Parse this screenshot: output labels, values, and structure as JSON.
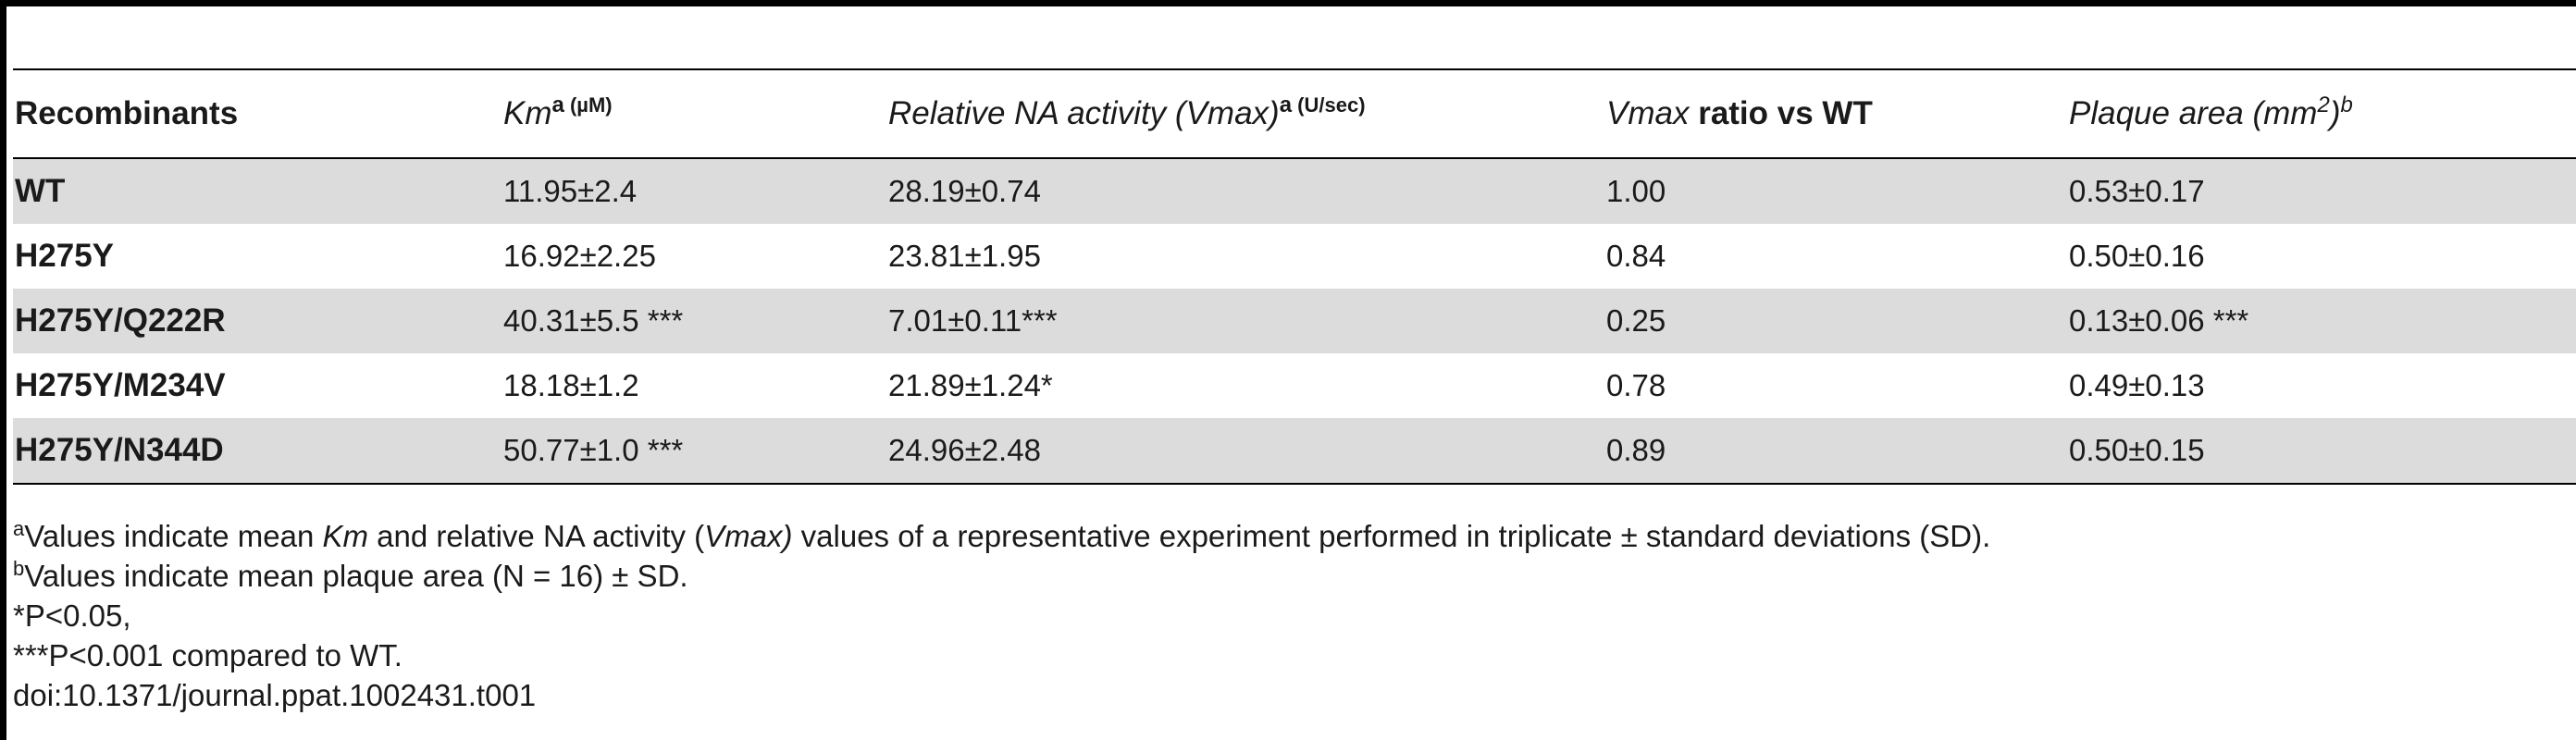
{
  "table": {
    "headers": [
      {
        "main": "Recombinants",
        "sup": "",
        "unit": ""
      },
      {
        "main": "Km",
        "sup": "a",
        "unit": " (µM)"
      },
      {
        "main": "Relative NA activity (Vmax)",
        "sup": "a",
        "unit": " (U/sec)"
      },
      {
        "main": "Vmax",
        "rest": " ratio vs WT"
      },
      {
        "main": "Plaque area (mm",
        "sup2": "2",
        "close": ")",
        "sup": "b"
      }
    ],
    "rows": [
      {
        "name": "WT",
        "km": "11.95±2.4",
        "vmax": "28.19±0.74",
        "ratio": "1.00",
        "plaque": "0.53±0.17"
      },
      {
        "name": "H275Y",
        "km": "16.92±2.25",
        "vmax": "23.81±1.95",
        "ratio": "0.84",
        "plaque": "0.50±0.16"
      },
      {
        "name": "H275Y/Q222R",
        "km": "40.31±5.5 ***",
        "vmax": "7.01±0.11***",
        "ratio": "0.25",
        "plaque": "0.13±0.06 ***"
      },
      {
        "name": "H275Y/M234V",
        "km": "18.18±1.2",
        "vmax": "21.89±1.24*",
        "ratio": "0.78",
        "plaque": "0.49±0.13"
      },
      {
        "name": "H275Y/N344D",
        "km": "50.77±1.0 ***",
        "vmax": "24.96±2.48",
        "ratio": "0.89",
        "plaque": "0.50±0.15"
      }
    ]
  },
  "footnotes": {
    "a": {
      "mark": "a",
      "p1": "Values indicate mean ",
      "km": "Km",
      "p2": " and relative NA activity (",
      "vmax": "Vmax)",
      "p3": " values of a representative experiment performed in triplicate ± standard deviations (SD)."
    },
    "b": {
      "mark": "b",
      "text": "Values indicate mean plaque area (N = 16) ± SD."
    },
    "p1": "*P<0.05,",
    "p2": "***P<0.001 compared to WT.",
    "doi": "doi:10.1371/journal.ppat.1002431.t001"
  }
}
